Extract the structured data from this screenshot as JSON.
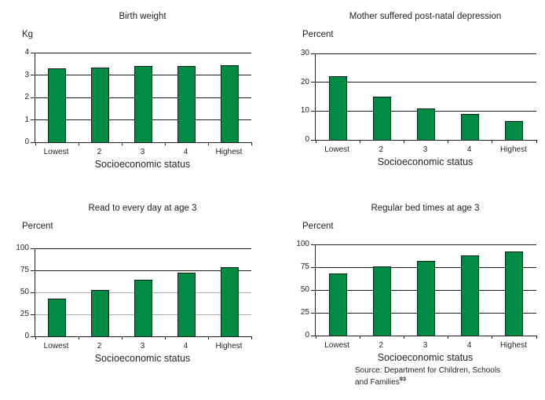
{
  "colors": {
    "bar_fill": "#008B45",
    "bar_border": "#1a1a1a",
    "gridline": "#231f20",
    "gridline_light": "#aaacae",
    "axis": "#231f20",
    "text": "#231f20",
    "background": "#ffffff"
  },
  "source_note": {
    "line1": "Source: Department for Children, Schools",
    "line2": "and Families",
    "superscript": "93"
  },
  "chart_data": [
    {
      "id": "birth-weight",
      "type": "bar",
      "title": "Birth weight",
      "unit_label": "Kg",
      "xlabel": "Socioeconomic status",
      "categories": [
        "Lowest",
        "2",
        "3",
        "4",
        "Highest"
      ],
      "values": [
        3.3,
        3.35,
        3.4,
        3.4,
        3.45
      ],
      "ylim": [
        0,
        4
      ],
      "yticks": [
        0,
        1,
        2,
        3,
        4
      ],
      "grid": true,
      "legend": false
    },
    {
      "id": "post-natal-depression",
      "type": "bar",
      "title": "Mother suffered post-natal depression",
      "unit_label": "Percent",
      "xlabel": "Socioeconomic status",
      "categories": [
        "Lowest",
        "2",
        "3",
        "4",
        "Highest"
      ],
      "values": [
        22,
        15,
        11,
        9,
        6.5
      ],
      "ylim": [
        0,
        30
      ],
      "yticks": [
        0,
        10,
        20,
        30
      ],
      "grid": true,
      "legend": false
    },
    {
      "id": "read-to-every-day-age-3",
      "type": "bar",
      "title": "Read to every day at age 3",
      "unit_label": "Percent",
      "xlabel": "Socioeconomic status",
      "categories": [
        "Lowest",
        "2",
        "3",
        "4",
        "Highest"
      ],
      "values": [
        43,
        53,
        64,
        72,
        79
      ],
      "ylim": [
        0,
        100
      ],
      "yticks": [
        0,
        25,
        50,
        75,
        100
      ],
      "light_gridlines": [
        25,
        50
      ],
      "grid": true,
      "legend": false
    },
    {
      "id": "regular-bed-times-age-3",
      "type": "bar",
      "title": "Regular bed times at age 3",
      "unit_label": "Percent",
      "xlabel": "Socioeconomic status",
      "categories": [
        "Lowest",
        "2",
        "3",
        "4",
        "Highest"
      ],
      "values": [
        68,
        76,
        82,
        88,
        92
      ],
      "ylim": [
        0,
        100
      ],
      "yticks": [
        0,
        25,
        50,
        75,
        100
      ],
      "grid": true,
      "legend": false
    }
  ]
}
